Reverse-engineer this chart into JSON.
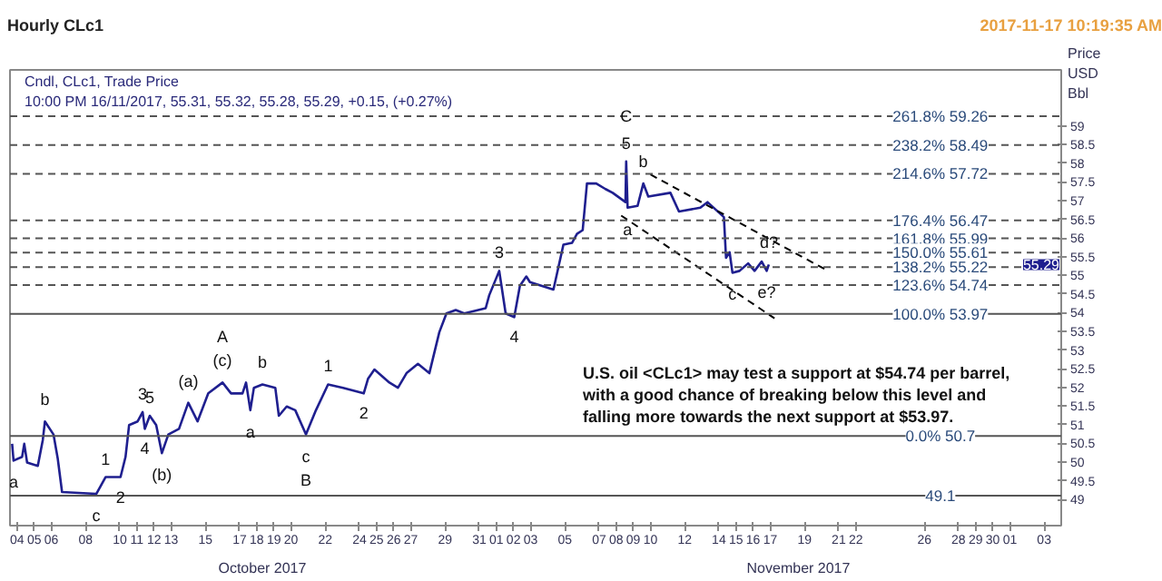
{
  "chart_data": {
    "type": "line",
    "title": "Hourly CLc1",
    "subtitle": "Cndl, CLc1, Trade Price\n10:00 PM 16/11/2017, 55.31, 55.32, 55.28, 55.29, +0.15, (+0.27%)",
    "ylabel": "Price\nUSD\nBbl",
    "xlim": [
      "2017-10-03T14:00",
      "2017-12-04T00:00"
    ],
    "ylim": [
      48.3,
      60.5
    ],
    "xticks": [
      {
        "value": "2017-10-04",
        "label": "04"
      },
      {
        "value": "2017-10-05",
        "label": "05"
      },
      {
        "value": "2017-10-06",
        "label": "06"
      },
      {
        "value": "2017-10-08",
        "label": "08"
      },
      {
        "value": "2017-10-10",
        "label": "10"
      },
      {
        "value": "2017-10-11",
        "label": "11"
      },
      {
        "value": "2017-10-12",
        "label": "12"
      },
      {
        "value": "2017-10-13",
        "label": "13"
      },
      {
        "value": "2017-10-15",
        "label": "15"
      },
      {
        "value": "2017-10-17",
        "label": "17"
      },
      {
        "value": "2017-10-18",
        "label": "18"
      },
      {
        "value": "2017-10-19",
        "label": "19"
      },
      {
        "value": "2017-10-20",
        "label": "20"
      },
      {
        "value": "2017-10-22",
        "label": "22"
      },
      {
        "value": "2017-10-24",
        "label": "24"
      },
      {
        "value": "2017-10-25",
        "label": "25"
      },
      {
        "value": "2017-10-26",
        "label": "26"
      },
      {
        "value": "2017-10-27",
        "label": "27"
      },
      {
        "value": "2017-10-29",
        "label": "29"
      },
      {
        "value": "2017-10-31",
        "label": "31"
      },
      {
        "value": "2017-11-01",
        "label": "01"
      },
      {
        "value": "2017-11-02",
        "label": "02"
      },
      {
        "value": "2017-11-03",
        "label": "03"
      },
      {
        "value": "2017-11-05",
        "label": "05"
      },
      {
        "value": "2017-11-07",
        "label": "07"
      },
      {
        "value": "2017-11-08",
        "label": "08"
      },
      {
        "value": "2017-11-09",
        "label": "09"
      },
      {
        "value": "2017-11-10",
        "label": "10"
      },
      {
        "value": "2017-11-12",
        "label": "12"
      },
      {
        "value": "2017-11-14",
        "label": "14"
      },
      {
        "value": "2017-11-15",
        "label": "15"
      },
      {
        "value": "2017-11-16",
        "label": "16"
      },
      {
        "value": "2017-11-17",
        "label": "17"
      },
      {
        "value": "2017-11-19",
        "label": "19"
      },
      {
        "value": "2017-11-21",
        "label": "21"
      },
      {
        "value": "2017-11-22",
        "label": "22"
      },
      {
        "value": "2017-11-26",
        "label": "26"
      },
      {
        "value": "2017-11-28",
        "label": "28"
      },
      {
        "value": "2017-11-29",
        "label": "29"
      },
      {
        "value": "2017-11-30",
        "label": "30"
      },
      {
        "value": "2017-12-01",
        "label": "01"
      },
      {
        "value": "2017-12-03",
        "label": "03"
      }
    ],
    "yticks": [
      49,
      49.5,
      50,
      50.5,
      51,
      51.5,
      52,
      52.5,
      53,
      53.5,
      54,
      54.5,
      55,
      55.5,
      56,
      56.5,
      57,
      57.5,
      58,
      58.5,
      59
    ],
    "series": [
      {
        "color": "#1f1f8f",
        "line_style": "solid",
        "x": [
          "2017-10-03T17:00",
          "2017-10-03T19:00",
          "2017-10-04T07:00",
          "2017-10-04T10:00",
          "2017-10-04T14:00",
          "2017-10-05T05:00",
          "2017-10-05T12:00",
          "2017-10-05T15:00",
          "2017-10-06T03:00",
          "2017-10-06T09:00",
          "2017-10-06T15:00",
          "2017-10-08T15:00",
          "2017-10-09T04:00",
          "2017-10-10T01:00",
          "2017-10-10T08:00",
          "2017-10-10T13:00",
          "2017-10-11T01:00",
          "2017-10-11T08:00",
          "2017-10-11T11:00",
          "2017-10-11T18:00",
          "2017-10-12T03:00",
          "2017-10-12T11:00",
          "2017-10-12T20:00",
          "2017-10-13T11:00",
          "2017-10-14T00:00",
          "2017-10-14T13:00",
          "2017-10-15T04:00",
          "2017-10-16T00:00",
          "2017-10-16T12:00",
          "2017-10-17T04:00",
          "2017-10-17T09:00",
          "2017-10-17T15:00",
          "2017-10-17T20:00",
          "2017-10-18T08:00",
          "2017-10-19T02:00",
          "2017-10-19T07:00",
          "2017-10-19T18:00",
          "2017-10-20T06:00",
          "2017-10-20T21:00",
          "2017-10-21T11:00",
          "2017-10-22T04:00",
          "2017-10-23T01:00",
          "2017-10-24T06:00",
          "2017-10-24T12:00",
          "2017-10-24T21:00",
          "2017-10-25T18:00",
          "2017-10-26T06:00",
          "2017-10-26T18:00",
          "2017-10-27T10:00",
          "2017-10-28T02:00",
          "2017-10-28T16:00",
          "2017-10-29T02:00",
          "2017-10-29T15:00",
          "2017-10-30T03:00",
          "2017-10-31T09:00",
          "2017-10-31T14:00",
          "2017-11-01T04:00",
          "2017-11-01T13:00",
          "2017-11-02T01:00",
          "2017-11-02T09:00",
          "2017-11-02T18:00",
          "2017-11-02T23:00",
          "2017-11-04T08:00",
          "2017-11-04T22:00",
          "2017-11-05T10:00",
          "2017-11-05T17:00",
          "2017-11-06T01:00",
          "2017-11-06T07:00",
          "2017-11-06T20:00",
          "2017-11-07T09:00",
          "2017-11-07T19:00",
          "2017-11-08T13:00",
          "2017-11-08T14:00",
          "2017-11-08T16:00",
          "2017-11-09T06:00",
          "2017-11-09T14:00",
          "2017-11-09T21:00",
          "2017-11-11T04:00",
          "2017-11-11T16:00",
          "2017-11-12T22:00",
          "2017-11-13T08:00",
          "2017-11-14T07:00",
          "2017-11-14T10:00",
          "2017-11-14T15:00",
          "2017-11-14T19:00",
          "2017-11-15T05:00",
          "2017-11-15T17:00",
          "2017-11-16T02:00",
          "2017-11-16T12:00",
          "2017-11-16T19:00",
          "2017-11-16T22:00"
        ],
        "values": [
          50.49,
          50.04,
          50.14,
          50.49,
          49.99,
          49.9,
          50.59,
          51.09,
          50.74,
          50.09,
          49.2,
          49.15,
          49.6,
          49.6,
          50.14,
          50.99,
          51.09,
          51.34,
          50.89,
          51.24,
          50.99,
          50.24,
          50.74,
          50.89,
          51.59,
          51.09,
          51.84,
          52.13,
          51.84,
          51.84,
          52.13,
          51.39,
          51.99,
          52.08,
          51.99,
          51.24,
          51.49,
          51.39,
          50.74,
          51.39,
          52.08,
          51.99,
          51.84,
          52.23,
          52.48,
          52.13,
          51.99,
          52.38,
          52.63,
          52.38,
          53.48,
          53.98,
          54.07,
          53.98,
          54.12,
          54.47,
          55.12,
          53.98,
          53.88,
          54.72,
          54.97,
          54.82,
          54.62,
          55.82,
          55.87,
          56.11,
          56.21,
          57.46,
          57.46,
          57.31,
          57.21,
          56.96,
          58.05,
          56.81,
          56.86,
          57.46,
          57.11,
          57.21,
          56.71,
          56.81,
          56.96,
          56.56,
          55.47,
          55.62,
          55.07,
          55.12,
          55.32,
          55.12,
          55.37,
          55.12,
          55.29
        ]
      },
      {
        "color": "#000000",
        "line_style": "dashed",
        "x": [
          "2017-11-10T00:00",
          "2017-11-20T06:00"
        ],
        "values": [
          57.7,
          55.15
        ]
      },
      {
        "color": "#000000",
        "line_style": "dashed",
        "x": [
          "2017-11-08T07:00",
          "2017-11-17T06:00"
        ],
        "values": [
          56.6,
          53.85
        ]
      }
    ],
    "ref_lines": [
      {
        "axis": "y",
        "value": 59.26,
        "label": "261.8% 59.26",
        "color": "#555555",
        "line_style": "dashed"
      },
      {
        "axis": "y",
        "value": 58.49,
        "label": "238.2% 58.49",
        "color": "#555555",
        "line_style": "dashed"
      },
      {
        "axis": "y",
        "value": 57.72,
        "label": "214.6% 57.72",
        "color": "#555555",
        "line_style": "dashed"
      },
      {
        "axis": "y",
        "value": 56.47,
        "label": "176.4% 56.47",
        "color": "#555555",
        "line_style": "dashed"
      },
      {
        "axis": "y",
        "value": 55.99,
        "label": "161.8% 55.99",
        "color": "#555555",
        "line_style": "dashed"
      },
      {
        "axis": "y",
        "value": 55.61,
        "label": "150.0% 55.61",
        "color": "#555555",
        "line_style": "dashed"
      },
      {
        "axis": "y",
        "value": 55.22,
        "label": "138.2% 55.22",
        "color": "#555555",
        "line_style": "dashed"
      },
      {
        "axis": "y",
        "value": 54.74,
        "label": "123.6% 54.74",
        "color": "#555555",
        "line_style": "dashed"
      },
      {
        "axis": "y",
        "value": 53.97,
        "label": "100.0% 53.97",
        "color": "#555555",
        "line_style": "solid"
      },
      {
        "axis": "y",
        "value": 50.7,
        "label": "0.0% 50.7",
        "color": "#555555",
        "line_style": "solid"
      },
      {
        "axis": "y",
        "value": 49.1,
        "label": "49.1",
        "color": "#555555",
        "line_style": "solid"
      }
    ],
    "annotations": [
      "2017-11-17 10:19:35 AM",
      {
        "text": "a",
        "x": "2017-10-03T19:00",
        "y": 50.04
      },
      {
        "text": "b",
        "x": "2017-10-05T15:00",
        "y": 51.09
      },
      {
        "text": "c",
        "x": "2017-10-08T15:00",
        "y": 49.15
      },
      {
        "text": "1",
        "x": "2017-10-09T04:00",
        "y": 49.6
      },
      {
        "text": "2",
        "x": "2017-10-10T01:00",
        "y": 49.6
      },
      {
        "text": "3",
        "x": "2017-10-11T08:00",
        "y": 51.34
      },
      {
        "text": "5",
        "x": "2017-10-11T18:00",
        "y": 51.24
      },
      {
        "text": "4",
        "x": "2017-10-11T11:00",
        "y": 50.89
      },
      {
        "text": "(a)",
        "x": "2017-10-14T00:00",
        "y": 51.59
      },
      {
        "text": "(b)",
        "x": "2017-10-12T11:00",
        "y": 50.24
      },
      {
        "text": "(c)",
        "x": "2017-10-16T00:00",
        "y": 52.13
      },
      {
        "text": "A",
        "x": "2017-10-16T00:00",
        "y": 52.13
      },
      {
        "text": "a",
        "x": "2017-10-17T15:00",
        "y": 51.39
      },
      {
        "text": "b",
        "x": "2017-10-18T08:00",
        "y": 52.08
      },
      {
        "text": "c",
        "x": "2017-10-20T21:00",
        "y": 50.74
      },
      {
        "text": "B",
        "x": "2017-10-20T21:00",
        "y": 50.74
      },
      {
        "text": "1",
        "x": "2017-10-22T04:00",
        "y": 52.08
      },
      {
        "text": "2",
        "x": "2017-10-24T06:00",
        "y": 51.84
      },
      {
        "text": "3",
        "x": "2017-11-01T04:00",
        "y": 55.12
      },
      {
        "text": "4",
        "x": "2017-11-02T01:00",
        "y": 53.88
      },
      {
        "text": "5",
        "x": "2017-11-08T14:00",
        "y": 58.05
      },
      {
        "text": "C",
        "x": "2017-11-08T14:00",
        "y": 58.05
      },
      {
        "text": "b",
        "x": "2017-11-09T14:00",
        "y": 57.46
      },
      {
        "text": "a",
        "x": "2017-11-08T16:00",
        "y": 56.81
      },
      {
        "text": "c",
        "x": "2017-11-14T19:00",
        "y": 55.07
      },
      {
        "text": "d?",
        "x": "2017-11-16T22:00",
        "y": 55.29
      },
      {
        "text": "e?",
        "x": "2017-11-16T19:00",
        "y": 55.12
      },
      "U.S. oil <CLc1> may test a support at $54.74 per barrel,\nwith a good chance of breaking below this level and\n falling more towards the next support at $53.97.",
      "October 2017",
      "November 2017",
      {
        "text": "55.29",
        "y": 55.29
      }
    ]
  }
}
